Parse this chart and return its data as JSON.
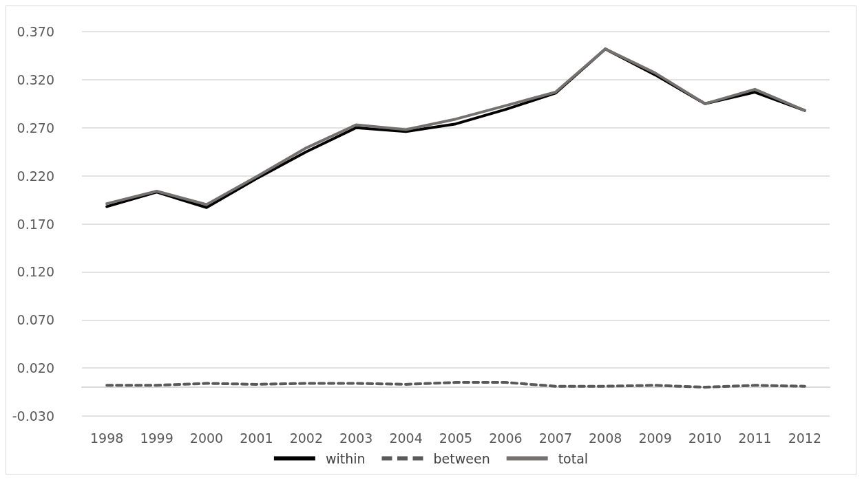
{
  "chart_data": {
    "type": "line",
    "categories": [
      "1998",
      "1999",
      "2000",
      "2001",
      "2002",
      "2003",
      "2004",
      "2005",
      "2006",
      "2007",
      "2008",
      "2009",
      "2010",
      "2011",
      "2012"
    ],
    "series": [
      {
        "name": "within",
        "color": "#000000",
        "line_style": "solid",
        "values": [
          0.188,
          0.203,
          0.187,
          0.217,
          0.245,
          0.27,
          0.266,
          0.274,
          0.289,
          0.306,
          0.352,
          0.325,
          0.295,
          0.307,
          0.288
        ]
      },
      {
        "name": "between",
        "color": "#595959",
        "line_style": "dashed",
        "values": [
          0.002,
          0.002,
          0.004,
          0.003,
          0.004,
          0.004,
          0.003,
          0.005,
          0.005,
          0.001,
          0.001,
          0.002,
          0.0,
          0.002,
          0.001
        ]
      },
      {
        "name": "total",
        "color": "#767171",
        "line_style": "solid",
        "values": [
          0.191,
          0.204,
          0.19,
          0.219,
          0.249,
          0.273,
          0.268,
          0.279,
          0.293,
          0.307,
          0.352,
          0.327,
          0.295,
          0.31,
          0.288
        ]
      }
    ],
    "ylim": [
      -0.03,
      0.37
    ],
    "yticks": [
      {
        "value": -0.03,
        "label": "-0.030"
      },
      {
        "value": 0.02,
        "label": "0.020"
      },
      {
        "value": 0.07,
        "label": "0.070"
      },
      {
        "value": 0.12,
        "label": "0.120"
      },
      {
        "value": 0.17,
        "label": "0.170"
      },
      {
        "value": 0.22,
        "label": "0.220"
      },
      {
        "value": 0.27,
        "label": "0.270"
      },
      {
        "value": 0.32,
        "label": "0.320"
      },
      {
        "value": 0.37,
        "label": "0.370"
      }
    ],
    "grid": "y",
    "legend": "bottom",
    "marker": "none"
  }
}
